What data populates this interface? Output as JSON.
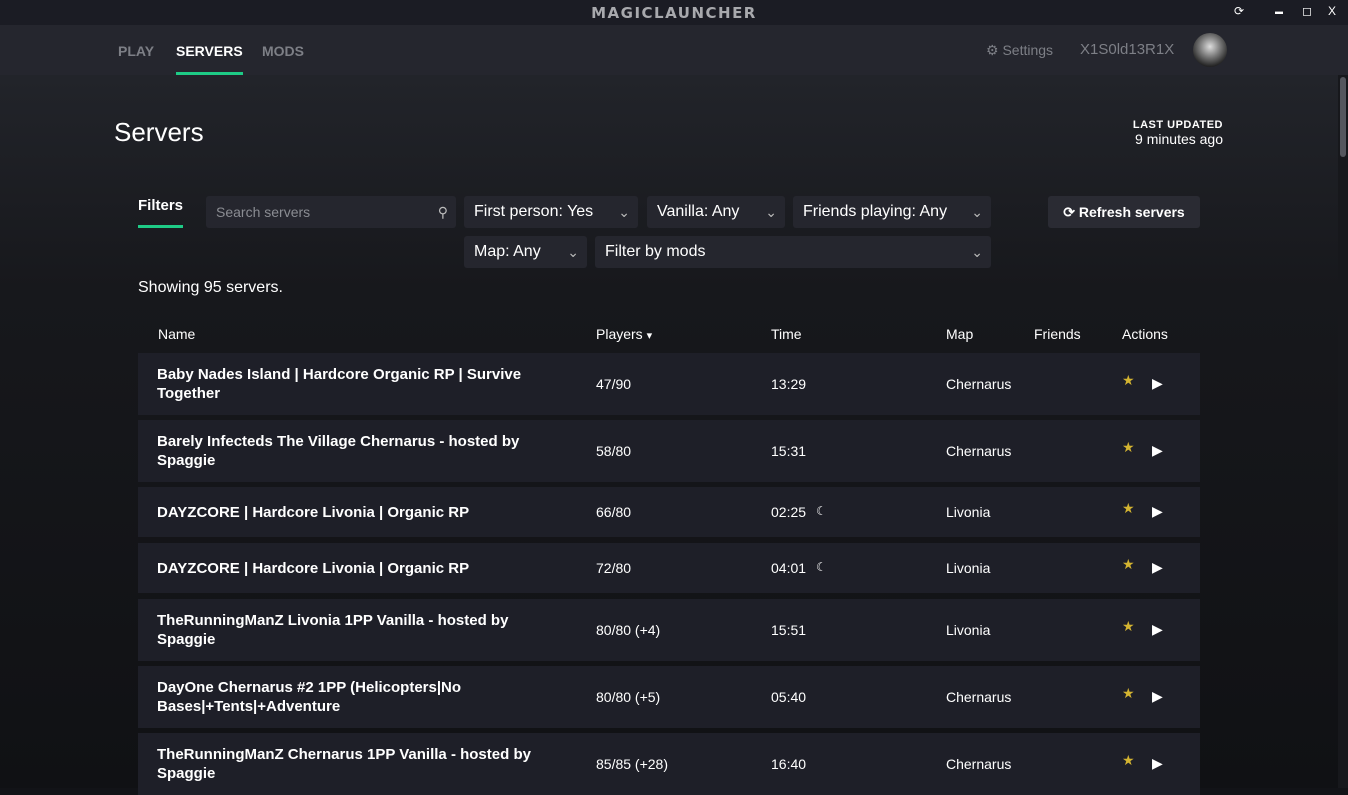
{
  "app": {
    "title": "MAGICLAUNCHER",
    "controls": [
      "⟳",
      "▬",
      "◻",
      "X"
    ]
  },
  "nav": {
    "tabs": [
      "PLAY",
      "SERVERS",
      "MODS"
    ],
    "active": "SERVERS",
    "settings": "Settings",
    "username": "X1S0ld13R1X"
  },
  "page": {
    "title": "Servers",
    "last_updated_label": "LAST UPDATED",
    "last_updated_value": "9 minutes ago"
  },
  "filters": {
    "label": "Filters",
    "search_placeholder": "Search servers",
    "first_person": "First person: Yes",
    "vanilla": "Vanilla: Any",
    "friends": "Friends playing: Any",
    "map": "Map: Any",
    "mods": "Filter by mods",
    "refresh": "Refresh servers"
  },
  "showing": "Showing 95 servers.",
  "table": {
    "headers": [
      "Name",
      "Players",
      "Time",
      "Map",
      "Friends",
      "Actions"
    ],
    "rows": [
      {
        "name": "Baby Nades Island | Hardcore Organic RP | Survive Together",
        "players": "47/90",
        "time": "13:29",
        "night": false,
        "map": "Chernarus"
      },
      {
        "name": "Barely Infecteds The Village Chernarus - hosted by Spaggie",
        "players": "58/80",
        "time": "15:31",
        "night": false,
        "map": "Chernarus"
      },
      {
        "name": "DAYZCORE | Hardcore Livonia | Organic RP",
        "players": "66/80",
        "time": "02:25",
        "night": true,
        "map": "Livonia"
      },
      {
        "name": "DAYZCORE | Hardcore Livonia | Organic RP",
        "players": "72/80",
        "time": "04:01",
        "night": true,
        "map": "Livonia"
      },
      {
        "name": "TheRunningManZ Livonia 1PP Vanilla - hosted by Spaggie",
        "players": "80/80 (+4)",
        "time": "15:51",
        "night": false,
        "map": "Livonia"
      },
      {
        "name": "DayOne Chernarus #2 1PP (Helicopters|No Bases|+Tents|+Adventure",
        "players": "80/80 (+5)",
        "time": "05:40",
        "night": false,
        "map": "Chernarus"
      },
      {
        "name": "TheRunningManZ Chernarus 1PP Vanilla - hosted by Spaggie",
        "players": "85/85 (+28)",
        "time": "16:40",
        "night": false,
        "map": "Chernarus"
      }
    ]
  },
  "colors": {
    "accent": "#1ecb86",
    "star": "#d4b431"
  }
}
